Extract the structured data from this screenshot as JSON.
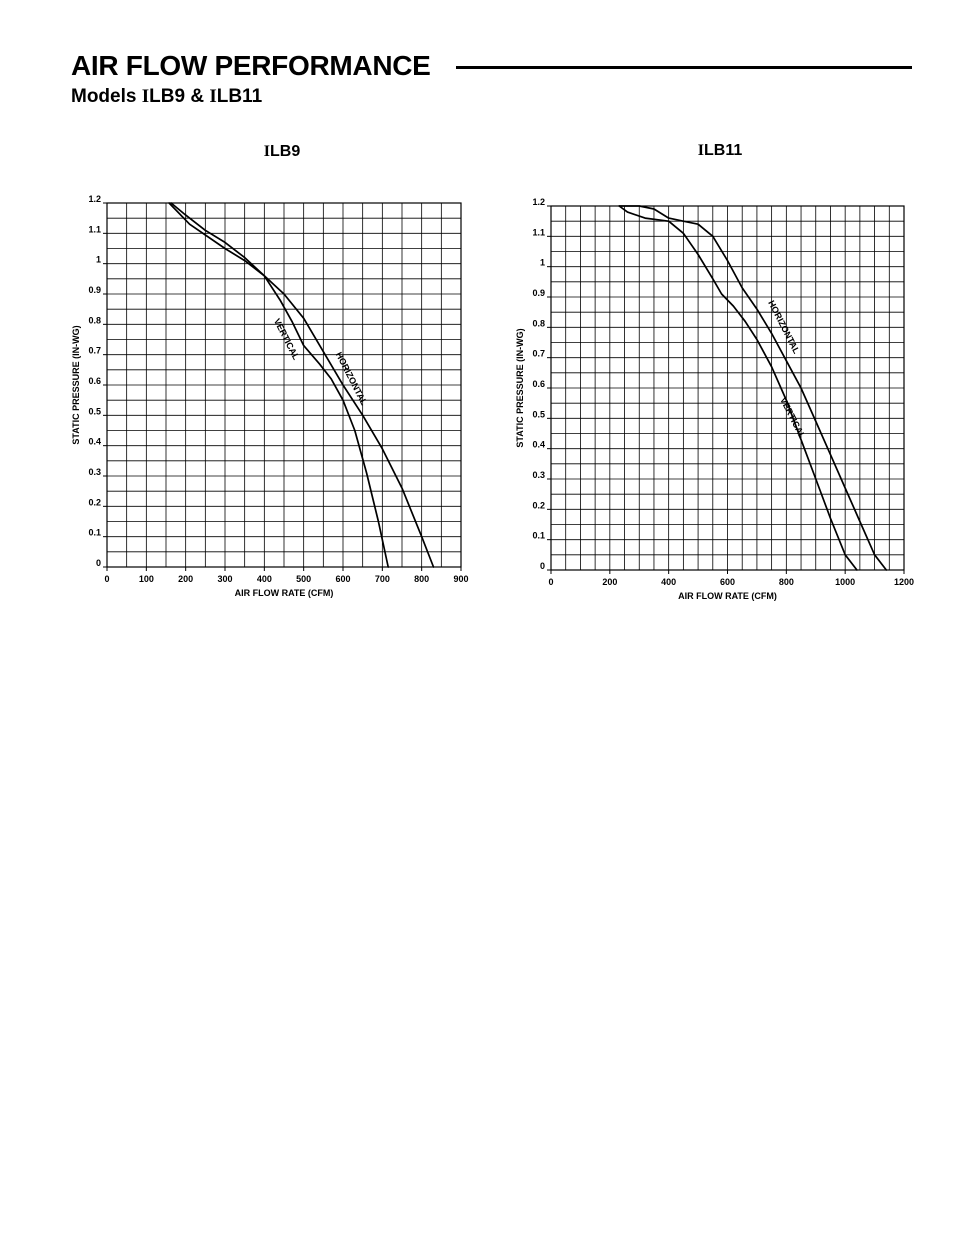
{
  "header": {
    "title": "AIR FLOW PERFORMANCE",
    "subtitle_prefix": "Models ",
    "subtitle_model_1_i": "I",
    "subtitle_model_1_rest": "LB9",
    "subtitle_joiner": " & ",
    "subtitle_model_2_i": "I",
    "subtitle_model_2_rest": "LB11"
  },
  "colors": {
    "ink": "#000000",
    "background": "#ffffff"
  },
  "chart_data": [
    {
      "type": "line",
      "title_i": "I",
      "title_rest": "LB9",
      "xlabel": "AIR FLOW RATE (CFM)",
      "ylabel": "STATIC PRESSURE (IN-WG)",
      "xlim": [
        0,
        900
      ],
      "ylim": [
        0,
        1.2
      ],
      "grid": true,
      "x_ticks": [
        "0",
        "100",
        "200",
        "300",
        "400",
        "500",
        "600",
        "700",
        "800",
        "900"
      ],
      "y_ticks": [
        "0",
        "0.1",
        "0.2",
        "0.3",
        "0.4",
        "0.5",
        "0.6",
        "0.7",
        "0.8",
        "0.9",
        "1",
        "1.1",
        "1.2"
      ],
      "series": [
        {
          "name": "VERTICAL",
          "x": [
            158,
            210,
            300,
            350,
            400,
            440,
            470,
            500,
            540,
            570,
            600,
            630,
            660,
            690,
            715
          ],
          "y": [
            1.2,
            1.13,
            1.05,
            1.01,
            0.96,
            0.88,
            0.81,
            0.73,
            0.67,
            0.62,
            0.55,
            0.45,
            0.31,
            0.15,
            0.0
          ]
        },
        {
          "name": "HORIZONTAL",
          "x": [
            163,
            200,
            250,
            300,
            350,
            400,
            450,
            500,
            550,
            600,
            650,
            700,
            750,
            800,
            830
          ],
          "y": [
            1.2,
            1.16,
            1.11,
            1.07,
            1.02,
            0.96,
            0.9,
            0.82,
            0.71,
            0.6,
            0.5,
            0.39,
            0.26,
            0.1,
            0.0
          ]
        }
      ],
      "annotations": [
        {
          "text": "VERTICAL",
          "x": 455,
          "y": 0.75
        },
        {
          "text": "HORIZONTAL",
          "x": 620,
          "y": 0.62
        }
      ]
    },
    {
      "type": "line",
      "title_i": "I",
      "title_rest": "LB11",
      "xlabel": "AIR FLOW RATE (CFM)",
      "ylabel": "STATIC PRESSURE (IN-WG)",
      "xlim": [
        0,
        1200
      ],
      "ylim": [
        0,
        1.2
      ],
      "grid": true,
      "x_ticks": [
        "0",
        "200",
        "400",
        "600",
        "800",
        "1000",
        "1200"
      ],
      "y_ticks": [
        "0",
        "0.1",
        "0.2",
        "0.3",
        "0.4",
        "0.5",
        "0.6",
        "0.7",
        "0.8",
        "0.9",
        "1",
        "1.1",
        "1.2"
      ],
      "series": [
        {
          "name": "VERTICAL",
          "x": [
            232,
            260,
            320,
            400,
            450,
            500,
            550,
            580,
            620,
            660,
            700,
            750,
            800,
            850,
            900,
            950,
            1000,
            1040
          ],
          "y": [
            1.2,
            1.18,
            1.16,
            1.15,
            1.11,
            1.04,
            0.96,
            0.91,
            0.87,
            0.82,
            0.76,
            0.67,
            0.56,
            0.43,
            0.3,
            0.17,
            0.05,
            0.0
          ]
        },
        {
          "name": "HORIZONTAL",
          "x": [
            232,
            300,
            350,
            400,
            450,
            500,
            550,
            600,
            650,
            700,
            750,
            800,
            850,
            900,
            950,
            1000,
            1050,
            1100,
            1140
          ],
          "y": [
            1.2,
            1.2,
            1.19,
            1.16,
            1.15,
            1.14,
            1.1,
            1.02,
            0.93,
            0.86,
            0.78,
            0.69,
            0.6,
            0.49,
            0.38,
            0.27,
            0.16,
            0.05,
            0.0
          ]
        }
      ],
      "annotations": [
        {
          "text": "HORIZONTAL",
          "x": 790,
          "y": 0.8
        },
        {
          "text": "VERTICAL",
          "x": 820,
          "y": 0.5
        }
      ]
    }
  ]
}
